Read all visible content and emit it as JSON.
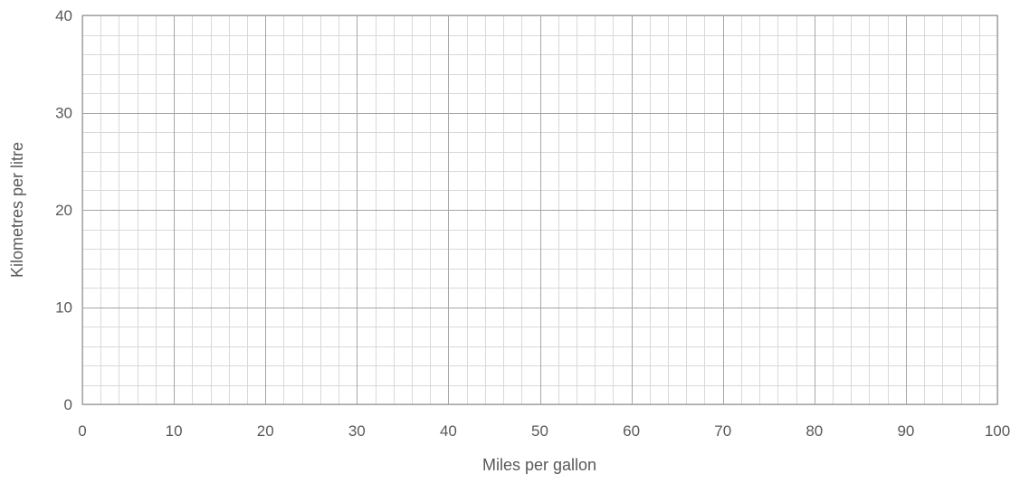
{
  "chart_data": {
    "type": "scatter",
    "title": "",
    "xlabel": "Miles per gallon",
    "ylabel": "Kilometres per litre",
    "xlim": [
      0,
      100
    ],
    "ylim": [
      0,
      40
    ],
    "x_major_step": 10,
    "y_major_step": 10,
    "x_minor_step": 2,
    "y_minor_step": 2,
    "x_ticks": [
      "0",
      "10",
      "20",
      "30",
      "40",
      "50",
      "60",
      "70",
      "80",
      "90",
      "100"
    ],
    "y_ticks": [
      "0",
      "10",
      "20",
      "30",
      "40"
    ],
    "grid": true,
    "series": [],
    "colors": {
      "major_grid": "#a6a6a6",
      "minor_grid": "#d9d9d9",
      "text": "#595959"
    }
  }
}
